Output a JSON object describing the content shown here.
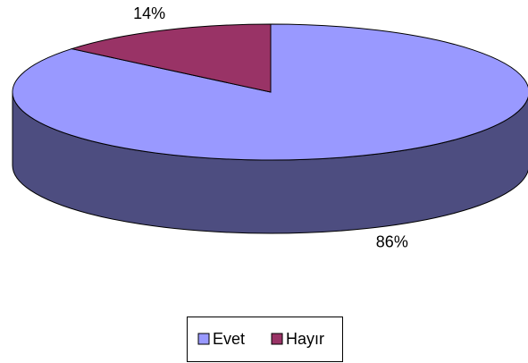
{
  "chart_data": {
    "type": "pie3d",
    "categories": [
      "Evet",
      "Hayır"
    ],
    "values": [
      86,
      14
    ],
    "value_labels": [
      "86%",
      "14%"
    ],
    "colors": [
      "#9999ff",
      "#993366"
    ],
    "legend": "bottom"
  }
}
